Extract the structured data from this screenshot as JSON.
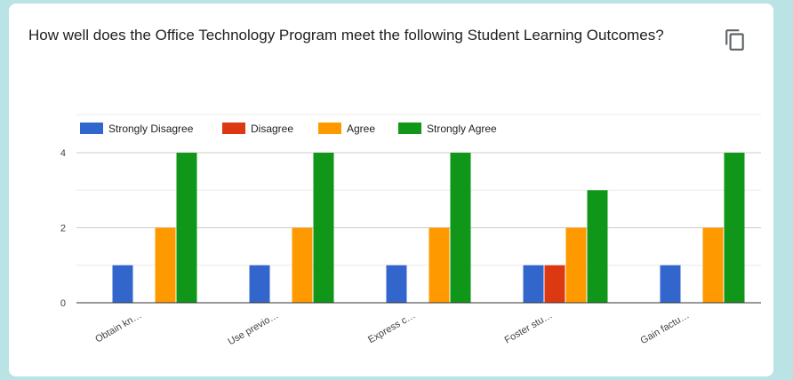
{
  "card": {
    "title": "How well does the Office Technology Program meet the following Student Learning Outcomes?",
    "copy_icon": "copy-icon"
  },
  "chart_data": {
    "type": "bar",
    "title": "",
    "xlabel": "",
    "ylabel": "",
    "ylim": [
      0,
      4
    ],
    "yticks": [
      0,
      2,
      4
    ],
    "grid": true,
    "legend_position": "top",
    "categories": [
      "Obtain kn…",
      "Use previo…",
      "Express c…",
      "Foster stu…",
      "Gain factu…"
    ],
    "series": [
      {
        "name": "Strongly Disagree",
        "color": "#3366cc",
        "values": [
          1,
          1,
          1,
          1,
          1
        ]
      },
      {
        "name": "Disagree",
        "color": "#dc3912",
        "values": [
          0,
          0,
          0,
          1,
          0
        ]
      },
      {
        "name": "Agree",
        "color": "#ff9900",
        "values": [
          2,
          2,
          2,
          2,
          2
        ]
      },
      {
        "name": "Strongly Agree",
        "color": "#109618",
        "values": [
          4,
          4,
          4,
          3,
          4
        ]
      }
    ]
  }
}
